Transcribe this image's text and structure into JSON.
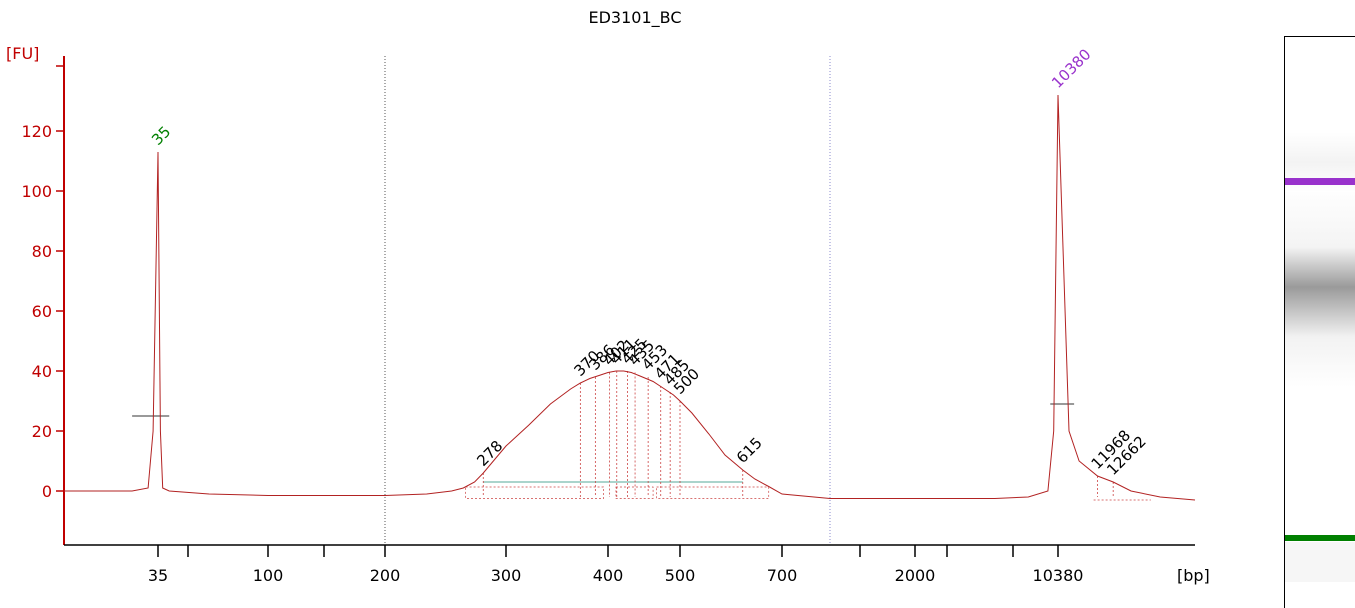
{
  "chart_data": {
    "type": "line",
    "title": "ED3101_BC",
    "ylabel": "[FU]",
    "xlabel": "[bp]",
    "ylim": [
      -18,
      145
    ],
    "grid": false,
    "y_ticks": [
      0,
      20,
      40,
      60,
      80,
      100,
      120
    ],
    "x_tick_labels": [
      "35",
      "100",
      "200",
      "300",
      "400",
      "500",
      "700",
      "2000",
      "10380"
    ],
    "x_tick_values": [
      35,
      100,
      200,
      300,
      400,
      500,
      700,
      2000,
      10380
    ],
    "x_minor_ticks": [
      50,
      150,
      1000,
      4000,
      7000
    ],
    "series": [
      {
        "color": "#b22222",
        "x": [
          20,
          30,
          33,
          34,
          35,
          36,
          37,
          40,
          60,
          100,
          150,
          200,
          230,
          250,
          260,
          270,
          278,
          290,
          300,
          320,
          340,
          360,
          370,
          380,
          390,
          400,
          410,
          420,
          430,
          440,
          450,
          460,
          470,
          480,
          490,
          500,
          520,
          550,
          580,
          615,
          640,
          670,
          700,
          800,
          1000,
          2000,
          3000,
          4000,
          6000,
          8000,
          9500,
          10000,
          10380,
          10800,
          11200,
          11968,
          12662,
          13500,
          15000,
          17000
        ],
        "y": [
          0,
          0,
          1,
          20,
          113,
          20,
          1,
          0,
          -1,
          -1.5,
          -1.5,
          -1.5,
          -1,
          0,
          1,
          3,
          6,
          11,
          15,
          22,
          29,
          34,
          36,
          37.5,
          38.5,
          39.5,
          40,
          40,
          39.5,
          38.5,
          37.5,
          36.5,
          35,
          33.5,
          32,
          30,
          26,
          19,
          12,
          7,
          4,
          1.5,
          -1,
          -2.5,
          -2.5,
          -2.5,
          -2.5,
          -2.5,
          -2.5,
          -2,
          0,
          20,
          132,
          20,
          10,
          5,
          3,
          0,
          -2,
          -3
        ]
      }
    ],
    "peak_labels": [
      {
        "label": "35",
        "x": 35,
        "y": 113,
        "color": "#008000"
      },
      {
        "label": "10380",
        "x": 10380,
        "y": 132,
        "color": "#9932cc"
      },
      {
        "label": "278",
        "x": 278,
        "y": 6,
        "color": "#000000"
      },
      {
        "label": "370",
        "x": 370,
        "y": 36,
        "color": "#000000"
      },
      {
        "label": "386",
        "x": 386,
        "y": 38,
        "color": "#000000"
      },
      {
        "label": "402",
        "x": 402,
        "y": 39.5,
        "color": "#000000"
      },
      {
        "label": "411",
        "x": 411,
        "y": 40,
        "color": "#000000"
      },
      {
        "label": "425",
        "x": 425,
        "y": 40,
        "color": "#000000"
      },
      {
        "label": "435",
        "x": 435,
        "y": 39.5,
        "color": "#000000"
      },
      {
        "label": "453",
        "x": 453,
        "y": 38,
        "color": "#000000"
      },
      {
        "label": "471",
        "x": 471,
        "y": 35,
        "color": "#000000"
      },
      {
        "label": "485",
        "x": 485,
        "y": 33,
        "color": "#000000"
      },
      {
        "label": "500",
        "x": 500,
        "y": 30,
        "color": "#000000"
      },
      {
        "label": "615",
        "x": 615,
        "y": 7,
        "color": "#000000"
      },
      {
        "label": "11968",
        "x": 11968,
        "y": 5,
        "color": "#000000"
      },
      {
        "label": "12662",
        "x": 12662,
        "y": 3,
        "color": "#000000"
      }
    ]
  },
  "gel": {
    "upper_marker_color": "#9932cc",
    "lower_marker_color": "#008000"
  }
}
